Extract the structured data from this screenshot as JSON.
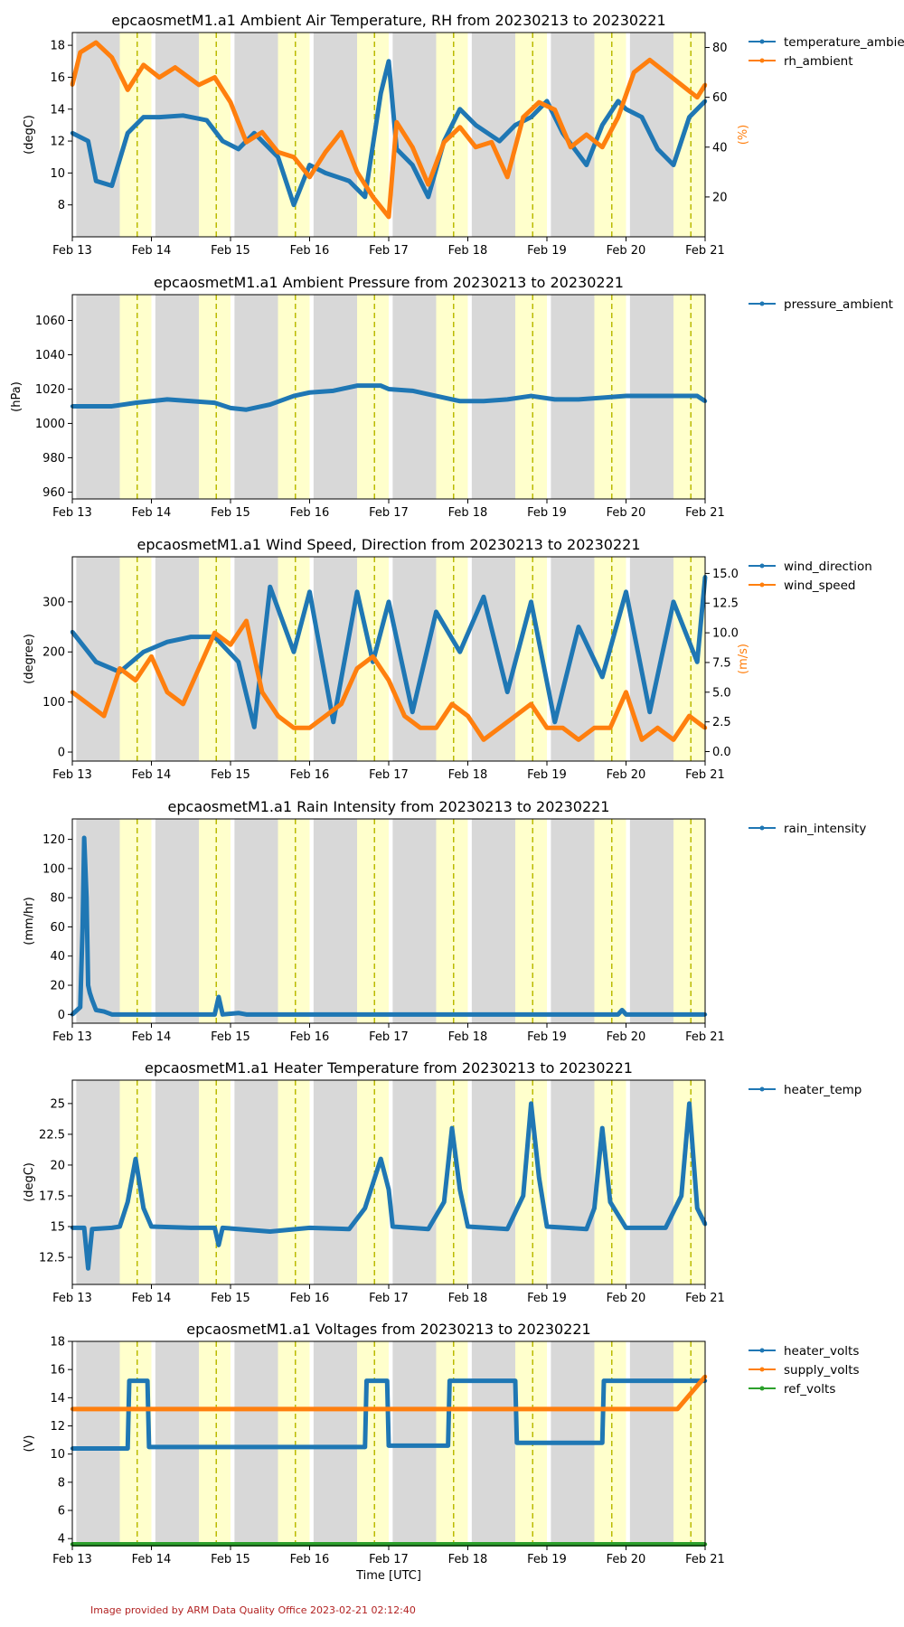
{
  "footer": "Image provided by ARM Data Quality Office 2023-02-21 02:12:40",
  "chart_data": [
    {
      "type": "line",
      "title": "epcaosmetM1.a1 Ambient Air Temperature, RH from 20230213 to 20230221",
      "xlabel": "",
      "ylabel": "(degC)",
      "ylabel_right": "(%)",
      "x_ticks": [
        "Feb 13",
        "Feb 14",
        "Feb 15",
        "Feb 16",
        "Feb 17",
        "Feb 18",
        "Feb 19",
        "Feb 20",
        "Feb 21"
      ],
      "ylim": [
        6.0,
        18.8
      ],
      "y_ticks": [
        8,
        10,
        12,
        14,
        16,
        18
      ],
      "ylim_right": [
        4,
        86
      ],
      "y_ticks_right": [
        20,
        40,
        60,
        80
      ],
      "legend": [
        "temperature_ambie",
        "rh_ambient"
      ],
      "series": [
        {
          "name": "temperature_ambie",
          "axis": "left",
          "color": "#1f77b4",
          "x": [
            13.0,
            13.2,
            13.3,
            13.5,
            13.7,
            13.9,
            14.1,
            14.4,
            14.7,
            14.9,
            15.1,
            15.3,
            15.6,
            15.8,
            16.0,
            16.2,
            16.5,
            16.7,
            16.9,
            17.0,
            17.1,
            17.3,
            17.5,
            17.7,
            17.9,
            18.1,
            18.4,
            18.6,
            18.8,
            19.0,
            19.2,
            19.5,
            19.7,
            19.9,
            20.0,
            20.2,
            20.4,
            20.6,
            20.8,
            21.0
          ],
          "values": [
            12.5,
            12.0,
            9.5,
            9.2,
            12.5,
            13.5,
            13.5,
            13.6,
            13.3,
            12.0,
            11.5,
            12.5,
            11.0,
            8.0,
            10.5,
            10.0,
            9.5,
            8.5,
            15.0,
            17.0,
            11.5,
            10.5,
            8.5,
            12.0,
            14.0,
            13.0,
            12.0,
            13.0,
            13.5,
            14.5,
            12.5,
            10.5,
            13.0,
            14.5,
            14.0,
            13.5,
            11.5,
            10.5,
            13.5,
            14.5
          ]
        },
        {
          "name": "rh_ambient",
          "axis": "right",
          "color": "#ff7f0e",
          "x": [
            13.0,
            13.1,
            13.3,
            13.5,
            13.7,
            13.9,
            14.1,
            14.3,
            14.6,
            14.8,
            15.0,
            15.2,
            15.4,
            15.6,
            15.8,
            16.0,
            16.2,
            16.4,
            16.6,
            16.8,
            17.0,
            17.1,
            17.3,
            17.5,
            17.7,
            17.9,
            18.1,
            18.3,
            18.5,
            18.7,
            18.9,
            19.1,
            19.3,
            19.5,
            19.7,
            19.9,
            20.1,
            20.3,
            20.5,
            20.7,
            20.9,
            21.0
          ],
          "values": [
            65,
            78,
            82,
            76,
            63,
            73,
            68,
            72,
            65,
            68,
            58,
            42,
            46,
            38,
            36,
            28,
            38,
            46,
            30,
            20,
            12,
            50,
            40,
            25,
            42,
            48,
            40,
            42,
            28,
            52,
            58,
            55,
            40,
            45,
            40,
            52,
            70,
            75,
            70,
            65,
            60,
            65
          ]
        }
      ]
    },
    {
      "type": "line",
      "title": "epcaosmetM1.a1 Ambient Pressure from 20230213 to 20230221",
      "xlabel": "",
      "ylabel": "(hPa)",
      "x_ticks": [
        "Feb 13",
        "Feb 14",
        "Feb 15",
        "Feb 16",
        "Feb 17",
        "Feb 18",
        "Feb 19",
        "Feb 20",
        "Feb 21"
      ],
      "ylim": [
        956,
        1075
      ],
      "y_ticks": [
        960,
        980,
        1000,
        1020,
        1040,
        1060
      ],
      "legend": [
        "pressure_ambient"
      ],
      "series": [
        {
          "name": "pressure_ambient",
          "axis": "left",
          "color": "#1f77b4",
          "x": [
            13.0,
            13.5,
            13.8,
            14.2,
            14.5,
            14.8,
            15.0,
            15.2,
            15.5,
            15.8,
            16.0,
            16.3,
            16.6,
            16.9,
            17.0,
            17.3,
            17.6,
            17.9,
            18.2,
            18.5,
            18.8,
            19.1,
            19.4,
            19.7,
            20.0,
            20.3,
            20.6,
            20.9,
            21.0
          ],
          "values": [
            1010,
            1010,
            1012,
            1014,
            1013,
            1012,
            1009,
            1008,
            1011,
            1016,
            1018,
            1019,
            1022,
            1022,
            1020,
            1019,
            1016,
            1013,
            1013,
            1014,
            1016,
            1014,
            1014,
            1015,
            1016,
            1016,
            1016,
            1016,
            1013
          ]
        }
      ]
    },
    {
      "type": "line",
      "title": "epcaosmetM1.a1 Wind Speed, Direction from 20230213 to 20230221",
      "xlabel": "",
      "ylabel": "(degree)",
      "ylabel_right": "(m/s)",
      "x_ticks": [
        "Feb 13",
        "Feb 14",
        "Feb 15",
        "Feb 16",
        "Feb 17",
        "Feb 18",
        "Feb 19",
        "Feb 20",
        "Feb 21"
      ],
      "ylim": [
        -18,
        390
      ],
      "y_ticks": [
        0,
        100,
        200,
        300
      ],
      "ylim_right": [
        -0.8,
        16.4
      ],
      "y_ticks_right": [
        0.0,
        2.5,
        5.0,
        7.5,
        10.0,
        12.5,
        15.0
      ],
      "legend": [
        "wind_direction",
        "wind_speed"
      ],
      "series": [
        {
          "name": "wind_direction",
          "axis": "left",
          "color": "#1f77b4",
          "x": [
            13.0,
            13.3,
            13.6,
            13.9,
            14.2,
            14.5,
            14.8,
            15.1,
            15.3,
            15.5,
            15.8,
            16.0,
            16.3,
            16.6,
            16.8,
            17.0,
            17.3,
            17.6,
            17.9,
            18.2,
            18.5,
            18.8,
            19.1,
            19.4,
            19.7,
            20.0,
            20.3,
            20.6,
            20.9,
            21.0
          ],
          "values": [
            240,
            180,
            160,
            200,
            220,
            230,
            230,
            180,
            50,
            330,
            200,
            320,
            60,
            320,
            180,
            300,
            80,
            280,
            200,
            310,
            120,
            300,
            60,
            250,
            150,
            320,
            80,
            300,
            180,
            350
          ]
        },
        {
          "name": "wind_speed",
          "axis": "right",
          "color": "#ff7f0e",
          "x": [
            13.0,
            13.2,
            13.4,
            13.6,
            13.8,
            14.0,
            14.2,
            14.4,
            14.6,
            14.8,
            15.0,
            15.2,
            15.4,
            15.6,
            15.8,
            16.0,
            16.2,
            16.4,
            16.6,
            16.8,
            17.0,
            17.2,
            17.4,
            17.6,
            17.8,
            18.0,
            18.2,
            18.4,
            18.6,
            18.8,
            19.0,
            19.2,
            19.4,
            19.6,
            19.8,
            20.0,
            20.2,
            20.4,
            20.6,
            20.8,
            21.0
          ],
          "values": [
            5,
            4,
            3,
            7,
            6,
            8,
            5,
            4,
            7,
            10,
            9,
            11,
            5,
            3,
            2,
            2,
            3,
            4,
            7,
            8,
            6,
            3,
            2,
            2,
            4,
            3,
            1,
            2,
            3,
            4,
            2,
            2,
            1,
            2,
            2,
            5,
            1,
            2,
            1,
            3,
            2
          ]
        }
      ]
    },
    {
      "type": "line",
      "title": "epcaosmetM1.a1 Rain Intensity from 20230213 to 20230221",
      "xlabel": "",
      "ylabel": "(mm/hr)",
      "x_ticks": [
        "Feb 13",
        "Feb 14",
        "Feb 15",
        "Feb 16",
        "Feb 17",
        "Feb 18",
        "Feb 19",
        "Feb 20",
        "Feb 21"
      ],
      "ylim": [
        -6,
        134
      ],
      "y_ticks": [
        0,
        20,
        40,
        60,
        80,
        100,
        120
      ],
      "legend": [
        "rain_intensity"
      ],
      "series": [
        {
          "name": "rain_intensity",
          "axis": "left",
          "color": "#1f77b4",
          "x": [
            13.0,
            13.1,
            13.13,
            13.15,
            13.18,
            13.2,
            13.22,
            13.25,
            13.3,
            13.4,
            13.5,
            14.1,
            14.8,
            14.85,
            14.9,
            15.1,
            15.2,
            19.9,
            19.95,
            20.0,
            21.0
          ],
          "values": [
            0,
            5,
            60,
            121,
            80,
            20,
            15,
            10,
            3,
            2,
            0,
            0,
            0,
            12,
            0,
            1,
            0,
            0,
            3,
            0,
            0
          ]
        }
      ]
    },
    {
      "type": "line",
      "title": "epcaosmetM1.a1 Heater Temperature from 20230213 to 20230221",
      "xlabel": "",
      "ylabel": "(degC)",
      "x_ticks": [
        "Feb 13",
        "Feb 14",
        "Feb 15",
        "Feb 16",
        "Feb 17",
        "Feb 18",
        "Feb 19",
        "Feb 20",
        "Feb 21"
      ],
      "ylim": [
        10.3,
        26.9
      ],
      "y_ticks": [
        12.5,
        15.0,
        17.5,
        20.0,
        22.5,
        25.0
      ],
      "legend": [
        "heater_temp"
      ],
      "series": [
        {
          "name": "heater_temp",
          "axis": "left",
          "color": "#1f77b4",
          "x": [
            13.0,
            13.15,
            13.2,
            13.25,
            13.5,
            13.6,
            13.7,
            13.8,
            13.9,
            14.0,
            14.5,
            14.8,
            14.85,
            14.9,
            15.5,
            16.0,
            16.5,
            16.7,
            16.9,
            17.0,
            17.05,
            17.5,
            17.7,
            17.8,
            17.9,
            18.0,
            18.5,
            18.7,
            18.8,
            18.9,
            19.0,
            19.5,
            19.6,
            19.7,
            19.8,
            20.0,
            20.5,
            20.7,
            20.8,
            20.9,
            21.0
          ],
          "values": [
            14.9,
            14.9,
            11.6,
            14.8,
            14.9,
            15.0,
            17.0,
            20.5,
            16.5,
            15.0,
            14.9,
            14.9,
            13.5,
            14.9,
            14.6,
            14.9,
            14.8,
            16.5,
            20.5,
            18.0,
            15.0,
            14.8,
            17.0,
            23.0,
            18.0,
            15.0,
            14.8,
            17.5,
            25.0,
            19.0,
            15.0,
            14.8,
            16.5,
            23.0,
            17.0,
            14.9,
            14.9,
            17.5,
            25.0,
            16.5,
            15.2
          ]
        }
      ]
    },
    {
      "type": "line",
      "title": "epcaosmetM1.a1 Voltages from 20230213 to 20230221",
      "xlabel": "Time [UTC]",
      "ylabel": "(V)",
      "x_ticks": [
        "Feb 13",
        "Feb 14",
        "Feb 15",
        "Feb 16",
        "Feb 17",
        "Feb 18",
        "Feb 19",
        "Feb 20",
        "Feb 21"
      ],
      "ylim": [
        3.5,
        18.0
      ],
      "y_ticks": [
        4,
        6,
        8,
        10,
        12,
        14,
        16,
        18
      ],
      "legend": [
        "heater_volts",
        "supply_volts",
        "ref_volts"
      ],
      "series": [
        {
          "name": "heater_volts",
          "axis": "left",
          "color": "#1f77b4",
          "x": [
            13.0,
            13.7,
            13.72,
            13.95,
            13.97,
            16.7,
            16.72,
            16.98,
            17.0,
            17.75,
            17.77,
            18.6,
            18.62,
            19.7,
            19.72,
            21.0
          ],
          "values": [
            10.4,
            10.4,
            15.2,
            15.2,
            10.5,
            10.5,
            15.2,
            15.2,
            10.6,
            10.6,
            15.2,
            15.2,
            10.8,
            10.8,
            15.2,
            15.2
          ]
        },
        {
          "name": "supply_volts",
          "axis": "left",
          "color": "#ff7f0e",
          "x": [
            13.0,
            13.7,
            13.95,
            16.7,
            17.0,
            17.7,
            18.0,
            18.65,
            19.0,
            19.7,
            20.05,
            20.65,
            21.0
          ],
          "values": [
            13.2,
            13.2,
            13.2,
            13.2,
            13.2,
            13.2,
            13.2,
            13.2,
            13.2,
            13.2,
            13.2,
            13.2,
            15.5
          ]
        },
        {
          "name": "ref_volts",
          "axis": "left",
          "color": "#2ca02c",
          "x": [
            13.0,
            21.0
          ],
          "values": [
            3.6,
            3.6
          ]
        }
      ]
    }
  ]
}
